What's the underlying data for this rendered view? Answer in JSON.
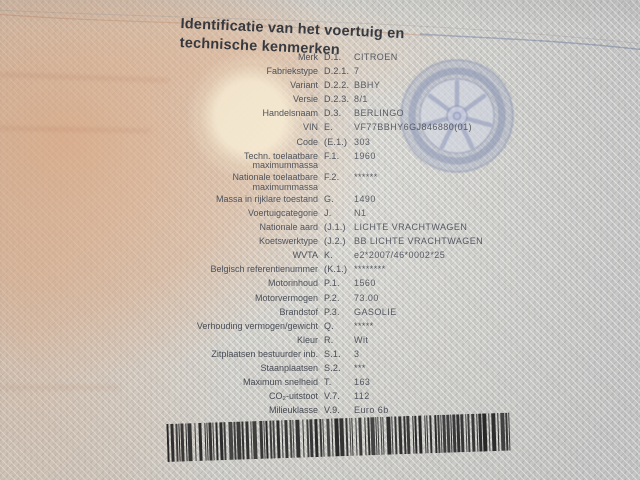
{
  "document": {
    "title_line1": "Identificatie van het voertuig en",
    "title_line2": "technische kenmerken"
  },
  "rows": [
    {
      "label": "Merk",
      "code": "D.1.",
      "value": "CITROEN"
    },
    {
      "label": "Fabriekstype",
      "code": "D.2.1.",
      "value": "7"
    },
    {
      "label": "Variant",
      "code": "D.2.2.",
      "value": "BBHY"
    },
    {
      "label": "Versie",
      "code": "D.2.3.",
      "value": "8/1"
    },
    {
      "label": "Handelsnaam",
      "code": "D.3.",
      "value": "BERLINGO"
    },
    {
      "label": "VIN",
      "code": "E.",
      "value": "VF77BBHY6GJ846880(01)"
    },
    {
      "label": "Code",
      "code": "(E.1.)",
      "value": "303"
    },
    {
      "label": "Techn. toelaatbare\nmaximummassa",
      "code": "F.1.",
      "value": "1960",
      "twoLine": true
    },
    {
      "label": "Nationale toelaatbare\nmaximummassa",
      "code": "F.2.",
      "value": "******",
      "twoLine": true
    },
    {
      "label": "Massa in rijklare toestand",
      "code": "G.",
      "value": "1490"
    },
    {
      "label": "Voertuigcategorie",
      "code": "J.",
      "value": "N1"
    },
    {
      "label": "Nationale aard",
      "code": "(J.1.)",
      "value": "LICHTE VRACHTWAGEN"
    },
    {
      "label": "Koetswerktype",
      "code": "(J.2.)",
      "value": "BB LICHTE VRACHTWAGEN"
    },
    {
      "label": "WVTA",
      "code": "K.",
      "value": "e2*2007/46*0002*25"
    },
    {
      "label": "Belgisch referentienummer",
      "code": "(K.1.)",
      "value": "********"
    },
    {
      "label": "Motorinhoud",
      "code": "P.1.",
      "value": "1560"
    },
    {
      "label": "Motorvermogen",
      "code": "P.2.",
      "value": "73.00"
    },
    {
      "label": "Brandstof",
      "code": "P.3.",
      "value": "GASOLIE"
    },
    {
      "label": "Verhouding vermogen/gewicht",
      "code": "Q.",
      "value": "*****"
    },
    {
      "label": "Kleur",
      "code": "R.",
      "value": "Wit"
    },
    {
      "label": "Zitplaatsen bestuurder inb.",
      "code": "S.1.",
      "value": "3"
    },
    {
      "label": "Staanplaatsen",
      "code": "S.2.",
      "value": "***"
    },
    {
      "label": "Maximum snelheid",
      "code": "T.",
      "value": "163"
    },
    {
      "label": "CO₂-uitstoot",
      "code": "V.7.",
      "value": "112"
    },
    {
      "label": "Milieuklasse",
      "code": "V.9.",
      "value": "Euro 6b"
    }
  ],
  "watermarks": {
    "left_stamp": "faded-round-stamp",
    "right_stamp": "blue-wheel-watermark"
  },
  "barcode": {
    "present": true,
    "text": ""
  },
  "colors": {
    "paper": "#d5d4ce",
    "salmon": "#e0a87e",
    "stamp_cream": "#f4e6c8",
    "wheel_blue": "#8f9cc0",
    "ink_title": "#272a31",
    "ink_text": "#3c414b",
    "barcode_ink": "#1e1e1e"
  }
}
